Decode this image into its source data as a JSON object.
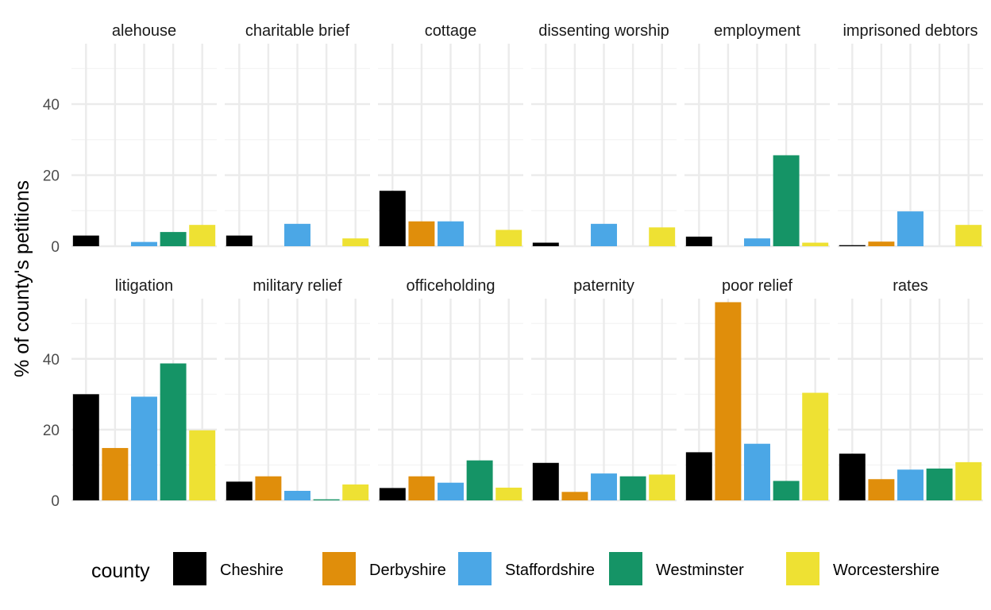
{
  "chart_data": {
    "type": "bar",
    "facet_layout": "6 columns x 2 rows",
    "ylabel": "% of county's petitions",
    "ylim": [
      0,
      57
    ],
    "yticks": [
      "0",
      "20",
      "40"
    ],
    "grid": true,
    "legend": {
      "title": "county",
      "position": "bottom",
      "entries": [
        "Cheshire",
        "Derbyshire",
        "Staffordshire",
        "Westminster",
        "Worcestershire"
      ]
    },
    "series_colors": {
      "Cheshire": "#000000",
      "Derbyshire": "#E08E0B",
      "Staffordshire": "#4BA7E6",
      "Westminster": "#159466",
      "Worcestershire": "#EEE133"
    },
    "facets": [
      {
        "title": "alehouse",
        "values": [
          3.0,
          null,
          1.2,
          4.0,
          6.0
        ]
      },
      {
        "title": "charitable brief",
        "values": [
          3.0,
          null,
          6.3,
          null,
          2.2
        ]
      },
      {
        "title": "cottage",
        "values": [
          15.6,
          7.0,
          7.0,
          null,
          4.6
        ]
      },
      {
        "title": "dissenting worship",
        "values": [
          1.0,
          null,
          6.3,
          null,
          5.3
        ]
      },
      {
        "title": "employment",
        "values": [
          2.7,
          null,
          2.2,
          25.6,
          1.0
        ]
      },
      {
        "title": "imprisoned debtors",
        "values": [
          0.3,
          1.3,
          9.8,
          null,
          6.0
        ]
      },
      {
        "title": "litigation",
        "values": [
          30.0,
          14.8,
          29.3,
          38.7,
          19.8
        ]
      },
      {
        "title": "military relief",
        "values": [
          5.3,
          6.8,
          2.7,
          0.3,
          4.5
        ]
      },
      {
        "title": "officeholding",
        "values": [
          3.5,
          6.8,
          5.0,
          11.3,
          3.6
        ]
      },
      {
        "title": "paternity",
        "values": [
          10.6,
          2.4,
          7.6,
          6.8,
          7.3
        ]
      },
      {
        "title": "poor relief",
        "values": [
          13.6,
          56.0,
          16.0,
          5.5,
          30.4
        ]
      },
      {
        "title": "rates",
        "values": [
          13.2,
          6.0,
          8.7,
          9.0,
          10.8
        ]
      }
    ]
  }
}
